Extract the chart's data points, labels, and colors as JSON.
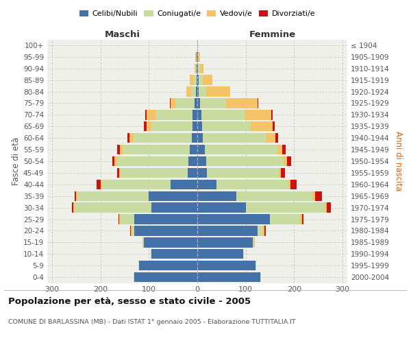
{
  "age_groups": [
    "0-4",
    "5-9",
    "10-14",
    "15-19",
    "20-24",
    "25-29",
    "30-34",
    "35-39",
    "40-44",
    "45-49",
    "50-54",
    "55-59",
    "60-64",
    "65-69",
    "70-74",
    "75-79",
    "80-84",
    "85-89",
    "90-94",
    "95-99",
    "100+"
  ],
  "birth_years": [
    "2000-2004",
    "1995-1999",
    "1990-1994",
    "1985-1989",
    "1980-1984",
    "1975-1979",
    "1970-1974",
    "1965-1969",
    "1960-1964",
    "1955-1959",
    "1950-1954",
    "1945-1949",
    "1940-1944",
    "1935-1939",
    "1930-1934",
    "1925-1929",
    "1920-1924",
    "1915-1919",
    "1910-1914",
    "1905-1909",
    "≤ 1904"
  ],
  "males": {
    "celibi": [
      130,
      120,
      95,
      110,
      130,
      130,
      95,
      100,
      55,
      20,
      18,
      15,
      12,
      10,
      10,
      5,
      3,
      2,
      1,
      1,
      0
    ],
    "coniugati": [
      2,
      2,
      1,
      2,
      5,
      28,
      158,
      148,
      142,
      138,
      148,
      140,
      120,
      85,
      75,
      40,
      10,
      5,
      2,
      1,
      0
    ],
    "vedovi": [
      0,
      0,
      0,
      1,
      3,
      3,
      3,
      3,
      3,
      3,
      5,
      5,
      8,
      10,
      20,
      10,
      10,
      8,
      3,
      2,
      0
    ],
    "divorziati": [
      0,
      0,
      0,
      0,
      1,
      2,
      3,
      3,
      8,
      5,
      5,
      5,
      4,
      5,
      2,
      1,
      0,
      0,
      0,
      0,
      0
    ]
  },
  "females": {
    "nubili": [
      130,
      120,
      95,
      115,
      125,
      150,
      100,
      80,
      40,
      20,
      18,
      15,
      12,
      10,
      8,
      5,
      3,
      3,
      2,
      1,
      0
    ],
    "coniugate": [
      2,
      2,
      1,
      3,
      10,
      63,
      163,
      158,
      148,
      148,
      160,
      150,
      130,
      100,
      90,
      55,
      15,
      8,
      3,
      1,
      0
    ],
    "vedove": [
      0,
      0,
      0,
      1,
      4,
      4,
      5,
      5,
      5,
      5,
      8,
      10,
      20,
      45,
      55,
      65,
      50,
      20,
      8,
      4,
      1
    ],
    "divorziate": [
      0,
      0,
      0,
      0,
      2,
      3,
      8,
      15,
      12,
      8,
      8,
      8,
      5,
      5,
      2,
      1,
      0,
      0,
      0,
      0,
      0
    ]
  },
  "colors": {
    "celibi": "#4472a8",
    "coniugati": "#c8dba0",
    "vedovi": "#f5c468",
    "divorziati": "#cc1111"
  },
  "xlim": 310,
  "title": "Popolazione per età, sesso e stato civile - 2005",
  "subtitle": "COMUNE DI BARLASSINA (MB) - Dati ISTAT 1° gennaio 2005 - Elaborazione TUTTITALIA.IT",
  "bg_color": "#f0f0eb",
  "grid_color": "#cccccc"
}
